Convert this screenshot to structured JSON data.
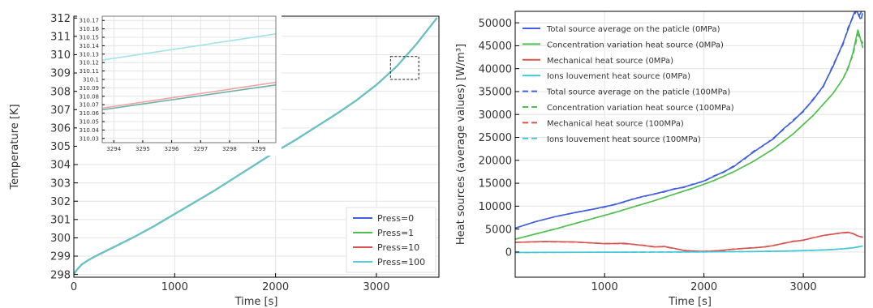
{
  "chart_data": [
    {
      "type": "line",
      "title": "",
      "xlabel": "Time [s]",
      "ylabel": "Temperature [K]",
      "xlim": [
        0,
        3620
      ],
      "ylim": [
        297.85,
        312.1
      ],
      "xticks": [
        0,
        1000,
        2000,
        3000
      ],
      "yticks": [
        298,
        299,
        300,
        301,
        302,
        303,
        304,
        305,
        306,
        307,
        308,
        309,
        310,
        311,
        312
      ],
      "grid": true,
      "legend_position": "bottom-right",
      "series": [
        {
          "name": "Press=0",
          "color": "#3f5fe0",
          "x": [
            0,
            30,
            80,
            150,
            250,
            400,
            600,
            800,
            1000,
            1200,
            1400,
            1600,
            1800,
            2000,
            2200,
            2400,
            2600,
            2800,
            3000,
            3200,
            3400,
            3600
          ],
          "y": [
            298.0,
            298.25,
            298.55,
            298.8,
            299.1,
            299.5,
            300.05,
            300.65,
            301.3,
            301.95,
            302.6,
            303.3,
            304.0,
            304.7,
            305.35,
            306.05,
            306.75,
            307.5,
            308.35,
            309.35,
            310.6,
            312.0
          ]
        },
        {
          "name": "Press=1",
          "color": "#4fbf4f",
          "x": [
            0,
            30,
            80,
            150,
            250,
            400,
            600,
            800,
            1000,
            1200,
            1400,
            1600,
            1800,
            2000,
            2200,
            2400,
            2600,
            2800,
            3000,
            3200,
            3400,
            3600
          ],
          "y": [
            298.0,
            298.25,
            298.55,
            298.8,
            299.1,
            299.5,
            300.05,
            300.65,
            301.3,
            301.95,
            302.6,
            303.3,
            304.0,
            304.7,
            305.35,
            306.05,
            306.75,
            307.5,
            308.35,
            309.35,
            310.6,
            312.0
          ]
        },
        {
          "name": "Press=10",
          "color": "#d9534f",
          "x": [
            0,
            30,
            80,
            150,
            250,
            400,
            600,
            800,
            1000,
            1200,
            1400,
            1600,
            1800,
            2000,
            2200,
            2400,
            2600,
            2800,
            3000,
            3200,
            3400,
            3600
          ],
          "y": [
            298.0,
            298.25,
            298.55,
            298.8,
            299.1,
            299.5,
            300.05,
            300.65,
            301.3,
            301.95,
            302.6,
            303.3,
            304.0,
            304.7,
            305.35,
            306.05,
            306.75,
            307.5,
            308.35,
            309.35,
            310.6,
            312.0
          ]
        },
        {
          "name": "Press=100",
          "color": "#5fc9cf",
          "x": [
            0,
            30,
            80,
            150,
            250,
            400,
            600,
            800,
            1000,
            1200,
            1400,
            1600,
            1800,
            2000,
            2200,
            2400,
            2600,
            2800,
            3000,
            3200,
            3400,
            3600
          ],
          "y": [
            298.0,
            298.25,
            298.55,
            298.8,
            299.1,
            299.5,
            300.05,
            300.65,
            301.3,
            301.95,
            302.6,
            303.3,
            304.0,
            304.7,
            305.35,
            306.05,
            306.75,
            307.5,
            308.35,
            309.35,
            310.6,
            312.0
          ]
        }
      ]
    },
    {
      "type": "line",
      "title": "",
      "xlabel": "",
      "ylabel": "",
      "xlim": [
        3293.6,
        3299.6
      ],
      "ylim": [
        310.025,
        310.175
      ],
      "xticks": [
        3294,
        3295,
        3296,
        3297,
        3298,
        3299
      ],
      "yticks": [
        310.03,
        310.04,
        310.05,
        310.06,
        310.07,
        310.08,
        310.09,
        310.1,
        310.11,
        310.12,
        310.13,
        310.14,
        310.15,
        310.16,
        310.17
      ],
      "grid": true,
      "series": [
        {
          "color": "#9fe4ea",
          "x": [
            3293.6,
            3299.6
          ],
          "y": [
            310.123,
            310.154
          ]
        },
        {
          "color": "#f2a4a4",
          "x": [
            3293.6,
            3299.6
          ],
          "y": [
            310.066,
            310.0965
          ]
        },
        {
          "color": "#6fb0a9",
          "x": [
            3293.6,
            3299.6
          ],
          "y": [
            310.064,
            310.0935
          ]
        }
      ]
    },
    {
      "type": "line",
      "title": "",
      "xlabel": "Time [s]",
      "ylabel": "Heat sources (average values) [W/m³]",
      "xlim": [
        100,
        3620
      ],
      "ylim": [
        -5500,
        52500
      ],
      "xticks": [
        1000,
        2000,
        3000
      ],
      "yticks": [
        0,
        5000,
        10000,
        15000,
        20000,
        25000,
        30000,
        35000,
        40000,
        45000,
        50000
      ],
      "grid": true,
      "legend_position": "top-left",
      "series": [
        {
          "name": "Total source average on the paticle (0MPa)",
          "color": "#3f5fe0",
          "dash": false,
          "x": [
            100,
            300,
            500,
            700,
            900,
            1000,
            1100,
            1200,
            1300,
            1400,
            1500,
            1600,
            1700,
            1800,
            1900,
            2000,
            2100,
            2200,
            2300,
            2400,
            2500,
            2600,
            2700,
            2800,
            2900,
            3000,
            3100,
            3200,
            3300,
            3400,
            3450,
            3500,
            3530,
            3560,
            3600
          ],
          "y": [
            5200,
            6600,
            7700,
            8600,
            9400,
            9900,
            10300,
            11000,
            11600,
            12200,
            12600,
            13200,
            13700,
            14200,
            14800,
            15500,
            16500,
            17500,
            18600,
            20300,
            21800,
            23300,
            24700,
            26900,
            28600,
            30800,
            33200,
            36200,
            40500,
            45600,
            48500,
            51500,
            53000,
            51500,
            53000
          ]
        },
        {
          "name": "Concentration variation heat source (0MPa)",
          "color": "#4fbf4f",
          "dash": false,
          "x": [
            100,
            300,
            500,
            700,
            900,
            1100,
            1300,
            1500,
            1700,
            1900,
            2100,
            2300,
            2500,
            2700,
            2900,
            3100,
            3300,
            3400,
            3450,
            3500,
            3550,
            3600
          ],
          "y": [
            2800,
            3900,
            5000,
            6200,
            7400,
            8600,
            9900,
            11200,
            12600,
            14000,
            15600,
            17500,
            19800,
            22500,
            25800,
            29800,
            34600,
            37800,
            40000,
            43500,
            48500,
            44500
          ]
        },
        {
          "name": "Mechanical heat source (0MPa)",
          "color": "#d9534f",
          "dash": false,
          "x": [
            100,
            400,
            700,
            1000,
            1200,
            1400,
            1500,
            1600,
            1700,
            1800,
            1900,
            2000,
            2100,
            2200,
            2300,
            2400,
            2500,
            2600,
            2700,
            2800,
            2900,
            3000,
            3100,
            3200,
            3300,
            3400,
            3450,
            3500,
            3550,
            3600
          ],
          "y": [
            2100,
            2300,
            2200,
            1800,
            1900,
            1400,
            1100,
            1200,
            800,
            300,
            200,
            100,
            200,
            400,
            600,
            800,
            900,
            1100,
            1400,
            1900,
            2300,
            2600,
            3100,
            3600,
            3900,
            4200,
            4300,
            4000,
            3500,
            3200
          ]
        },
        {
          "name": "Ions louvement heat source (0MPa)",
          "color": "#3fc8d6",
          "dash": false,
          "x": [
            100,
            500,
            1000,
            1500,
            2000,
            2500,
            2800,
            3000,
            3200,
            3300,
            3400,
            3500,
            3600
          ],
          "y": [
            -100,
            -80,
            -50,
            -20,
            20,
            100,
            200,
            300,
            450,
            550,
            700,
            900,
            1300
          ]
        },
        {
          "name": "Total source average on the paticle (100MPa)",
          "color": "#3f5fe0",
          "dash": true,
          "x": [
            100,
            300,
            500,
            700,
            900,
            1000,
            1100,
            1200,
            1300,
            1400,
            1500,
            1600,
            1700,
            1800,
            1900,
            2000,
            2100,
            2200,
            2300,
            2400,
            2500,
            2600,
            2700,
            2800,
            2900,
            3000,
            3100,
            3200,
            3300,
            3400,
            3450,
            3500,
            3540,
            3580,
            3600
          ],
          "y": [
            5200,
            6600,
            7700,
            8600,
            9400,
            9800,
            10400,
            10900,
            11700,
            12100,
            12700,
            13100,
            13800,
            14100,
            14900,
            15400,
            16600,
            17400,
            18800,
            20100,
            22000,
            23200,
            24900,
            26700,
            28800,
            30600,
            33400,
            36000,
            40800,
            45300,
            48900,
            51200,
            52800,
            50500,
            52500
          ]
        },
        {
          "name": "Concentration variation heat source (100MPa)",
          "color": "#4fbf4f",
          "dash": true,
          "x": [
            100,
            300,
            500,
            700,
            900,
            1100,
            1300,
            1500,
            1700,
            1900,
            2100,
            2300,
            2500,
            2700,
            2900,
            3100,
            3300,
            3400,
            3450,
            3500,
            3550,
            3600
          ],
          "y": [
            2800,
            3900,
            5000,
            6200,
            7400,
            8600,
            9900,
            11200,
            12600,
            14000,
            15600,
            17500,
            19800,
            22500,
            25800,
            29800,
            34600,
            37800,
            40300,
            43000,
            47500,
            45500
          ]
        },
        {
          "name": "Mechanical heat source (100MPa)",
          "color": "#d9534f",
          "dash": true,
          "x": [
            100,
            400,
            700,
            1000,
            1200,
            1400,
            1500,
            1600,
            1700,
            1800,
            1900,
            2000,
            2100,
            2200,
            2300,
            2400,
            2500,
            2600,
            2700,
            2800,
            2900,
            3000,
            3100,
            3200,
            3300,
            3400,
            3450,
            3500,
            3550,
            3600
          ],
          "y": [
            2100,
            2250,
            2150,
            1850,
            1800,
            1450,
            1150,
            1150,
            750,
            350,
            150,
            150,
            250,
            350,
            650,
            750,
            950,
            1050,
            1450,
            1850,
            2350,
            2550,
            3150,
            3550,
            3950,
            4150,
            4250,
            4050,
            3450,
            3250
          ]
        },
        {
          "name": "Ions louvement heat source (100MPa)",
          "color": "#3fc8d6",
          "dash": true,
          "x": [
            100,
            500,
            1000,
            1500,
            2000,
            2500,
            2800,
            3000,
            3200,
            3300,
            3400,
            3500,
            3600
          ],
          "y": [
            -100,
            -80,
            -50,
            -20,
            20,
            100,
            200,
            300,
            450,
            550,
            700,
            900,
            1300
          ]
        }
      ]
    }
  ]
}
